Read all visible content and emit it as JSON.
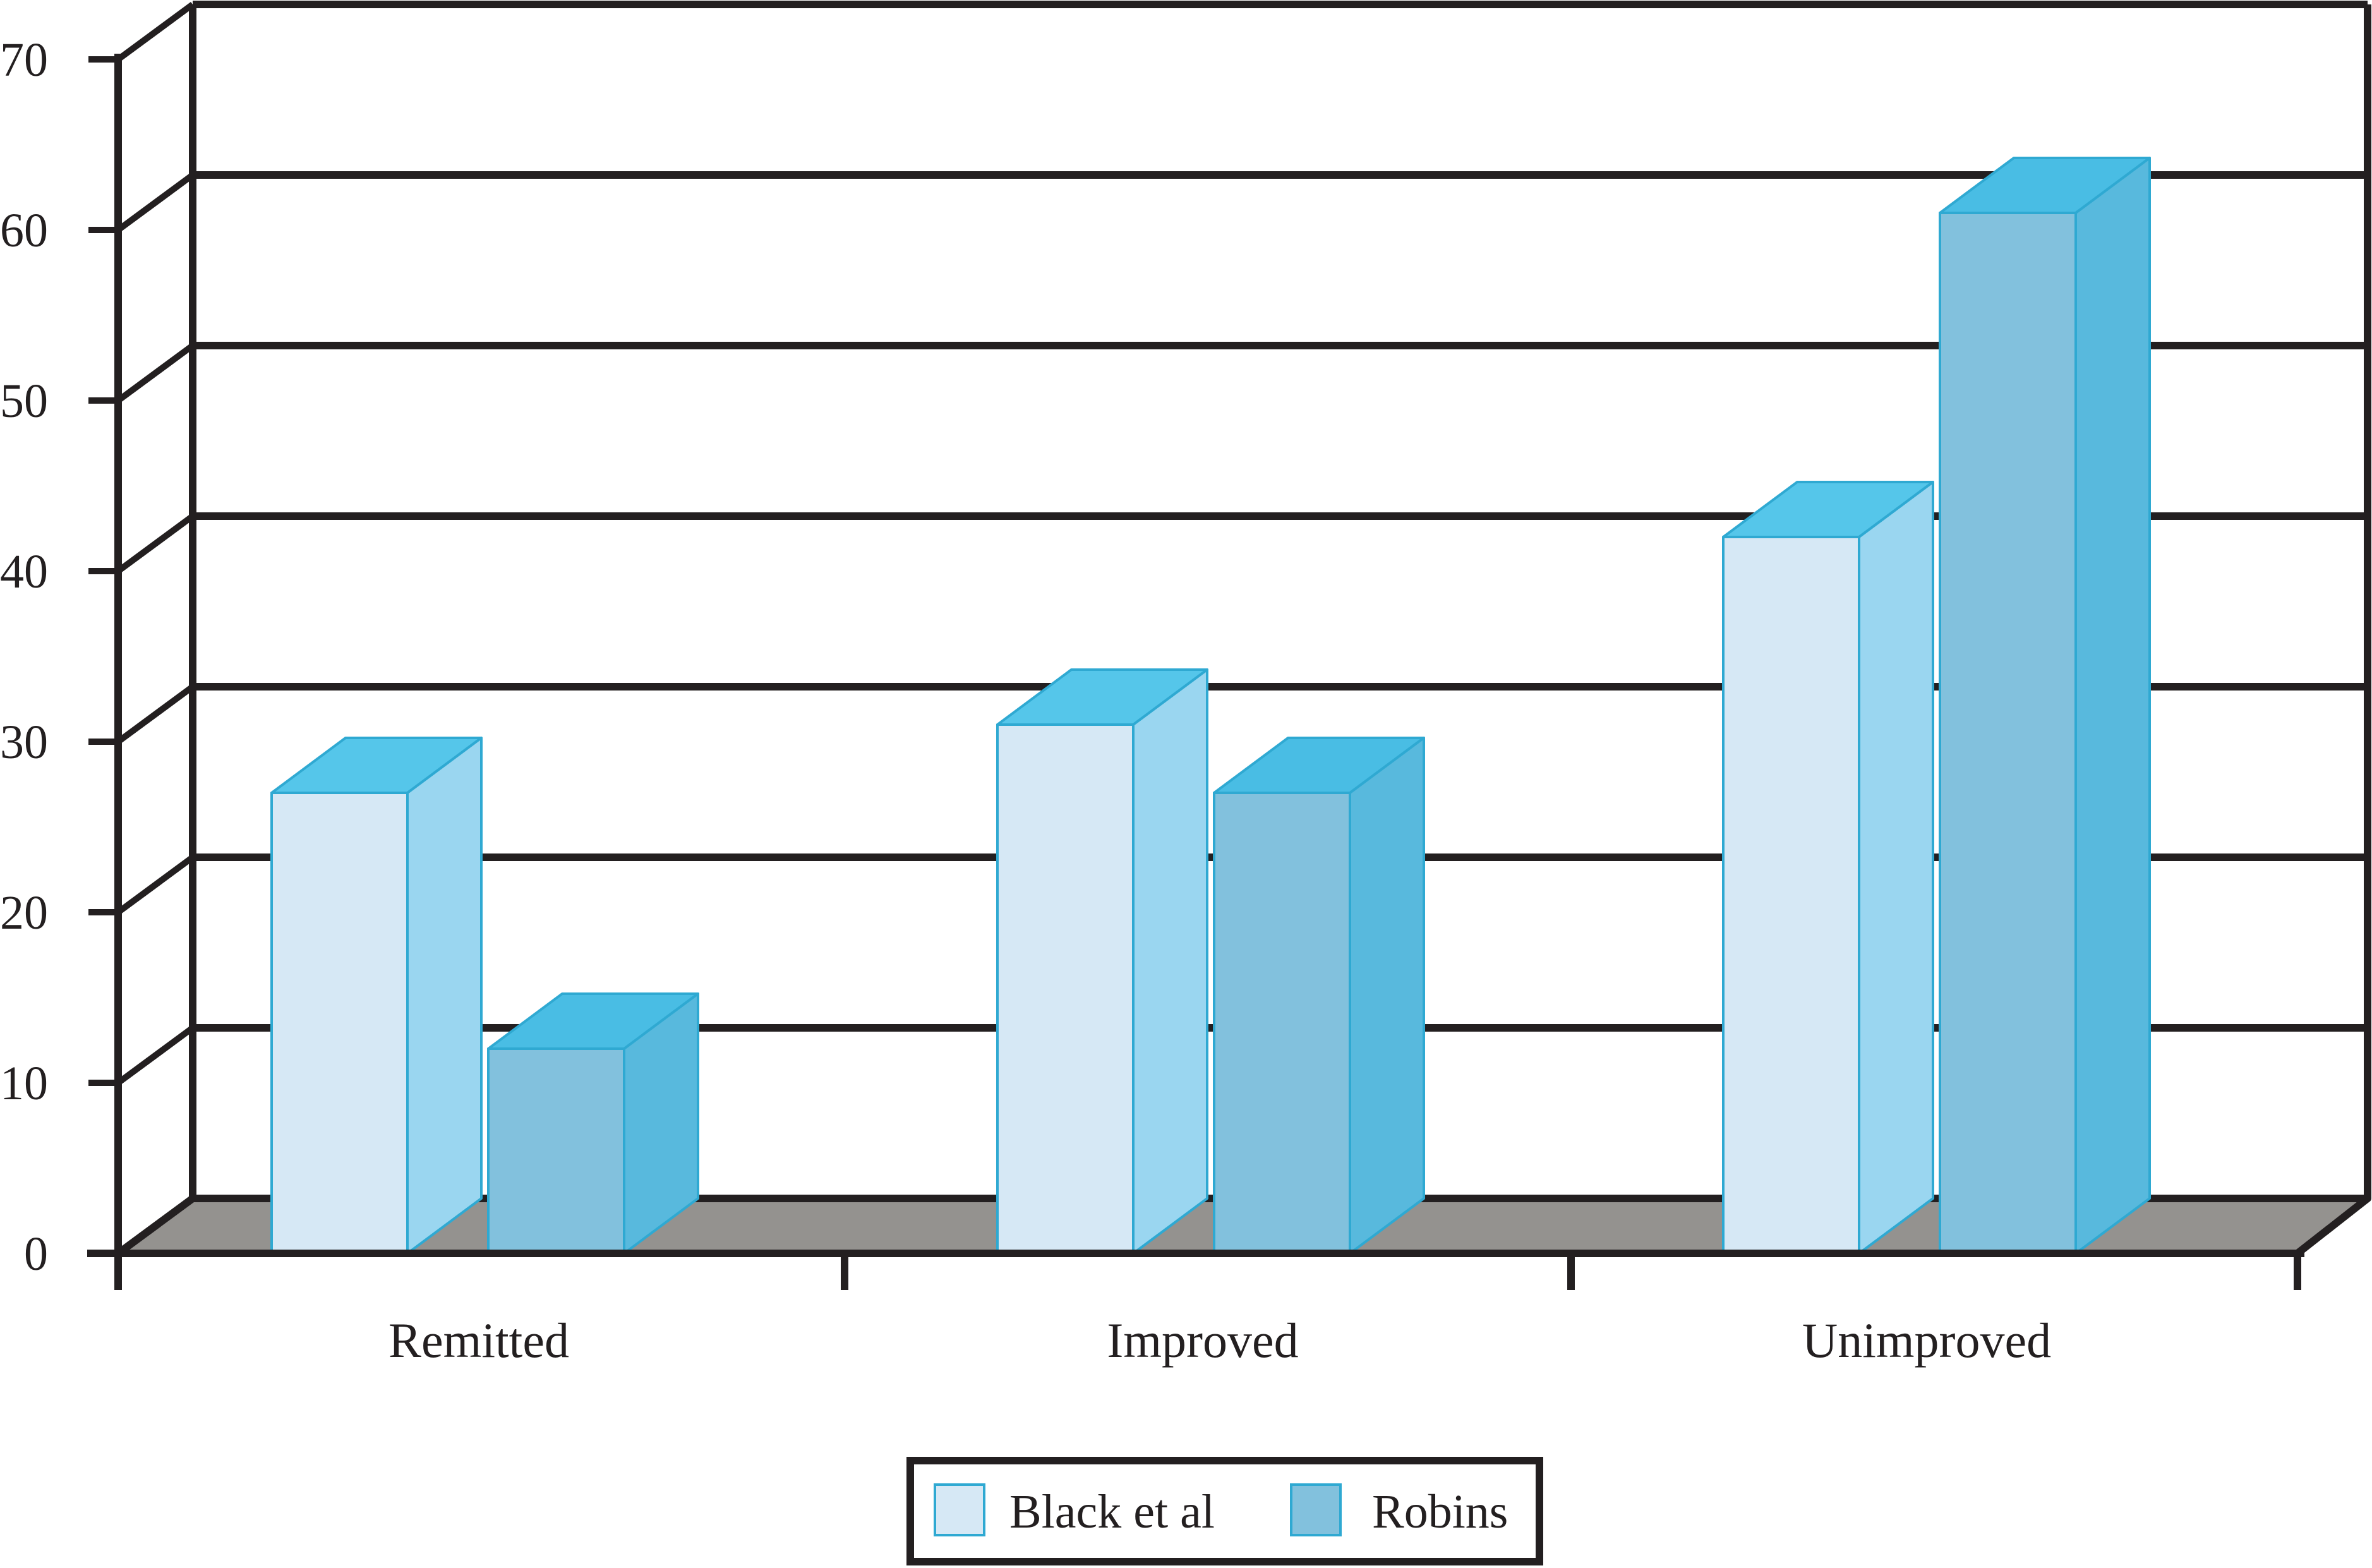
{
  "chart_data": {
    "type": "bar",
    "projection": "3d-block",
    "title": "",
    "categories": [
      "Remitted",
      "Improved",
      "Unimproved"
    ],
    "series": [
      {
        "name": "Black et al",
        "values": [
          27,
          31,
          42
        ],
        "color_front": "#D6E8F5",
        "color_side": "#9AD6F0",
        "color_top": "#55C6EA"
      },
      {
        "name": "Robins",
        "values": [
          12,
          27,
          61
        ],
        "color_front": "#82C1DD",
        "color_side": "#58B9DD",
        "color_top": "#49BDE4"
      }
    ],
    "ylim": [
      0,
      70
    ],
    "yticks": [
      0,
      10,
      20,
      30,
      40,
      50,
      60,
      70
    ],
    "xlabel": "",
    "ylabel": "",
    "grid": true,
    "legend_position": "bottom-center",
    "colors": {
      "outline": "#2FA9D2",
      "axis_line": "#231F20",
      "floor": "#94928F",
      "text": "#231F20",
      "background": "#FFFFFF"
    }
  }
}
